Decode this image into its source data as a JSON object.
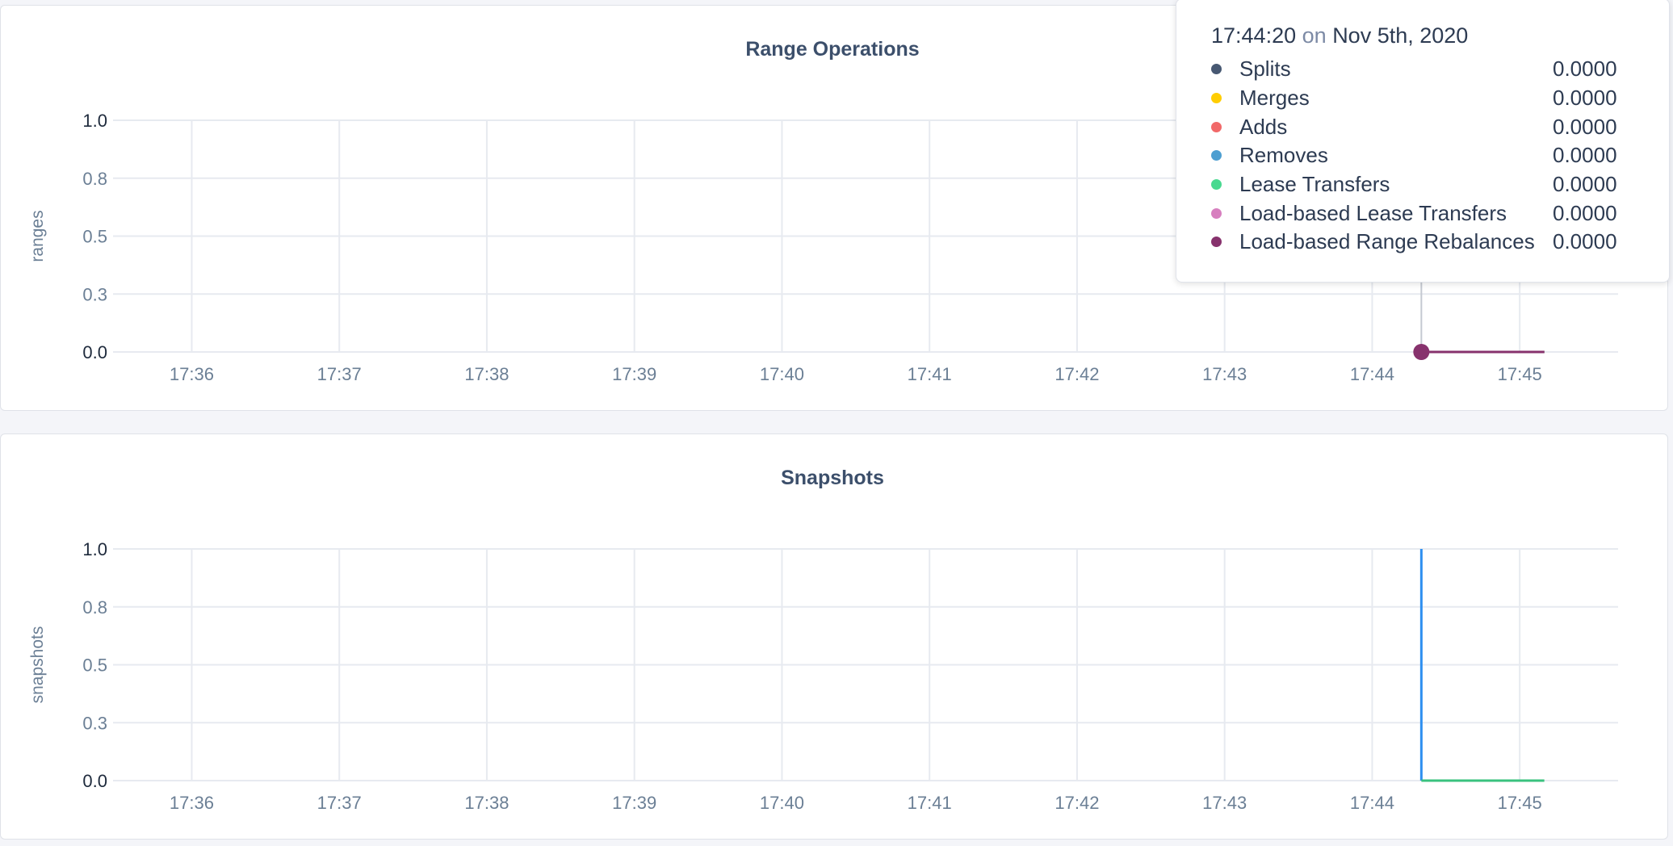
{
  "chart_data": [
    {
      "type": "line",
      "title": "Range Operations",
      "ylabel": "ranges",
      "ylim": [
        0,
        1
      ],
      "yticks": [
        "0.0",
        "0.3",
        "0.5",
        "0.8",
        "1.0"
      ],
      "ytick_values": [
        0,
        0.25,
        0.5,
        0.75,
        1
      ],
      "xticks": [
        "17:36",
        "17:37",
        "17:38",
        "17:39",
        "17:40",
        "17:41",
        "17:42",
        "17:43",
        "17:44",
        "17:45"
      ],
      "xlim": [
        "17:35:28",
        "17:45:40"
      ],
      "grid": true,
      "series": [
        {
          "name": "Splits",
          "color": "#475872",
          "x": [
            "17:44:20",
            "17:45:10"
          ],
          "y": [
            0,
            0
          ]
        },
        {
          "name": "Merges",
          "color": "#ffcd02",
          "x": [
            "17:44:20",
            "17:45:10"
          ],
          "y": [
            0,
            0
          ]
        },
        {
          "name": "Adds",
          "color": "#f16969",
          "x": [
            "17:44:20",
            "17:45:10"
          ],
          "y": [
            0,
            0
          ]
        },
        {
          "name": "Removes",
          "color": "#4e9fd1",
          "x": [
            "17:44:20",
            "17:45:10"
          ],
          "y": [
            0,
            0
          ]
        },
        {
          "name": "Lease Transfers",
          "color": "#49d990",
          "x": [
            "17:44:20",
            "17:45:10"
          ],
          "y": [
            0,
            0
          ]
        },
        {
          "name": "Load-based Lease Transfers",
          "color": "#d77fbf",
          "x": [
            "17:44:20",
            "17:45:10"
          ],
          "y": [
            0,
            0
          ]
        },
        {
          "name": "Load-based Range Rebalances",
          "color": "#87326d",
          "x": [
            "17:44:20",
            "17:45:10"
          ],
          "y": [
            0,
            0
          ]
        }
      ],
      "hover_x": "17:44:20",
      "tooltip": {
        "time": "17:44:20",
        "on": "on",
        "date": "Nov 5th, 2020",
        "values": [
          "0.0000",
          "0.0000",
          "0.0000",
          "0.0000",
          "0.0000",
          "0.0000",
          "0.0000"
        ]
      }
    },
    {
      "type": "line",
      "title": "Snapshots",
      "ylabel": "snapshots",
      "ylim": [
        0,
        1
      ],
      "yticks": [
        "0.0",
        "0.3",
        "0.5",
        "0.8",
        "1.0"
      ],
      "ytick_values": [
        0,
        0.25,
        0.5,
        0.75,
        1
      ],
      "xticks": [
        "17:36",
        "17:37",
        "17:38",
        "17:39",
        "17:40",
        "17:41",
        "17:42",
        "17:43",
        "17:44",
        "17:45"
      ],
      "xlim": [
        "17:35:28",
        "17:45:40"
      ],
      "grid": true,
      "series": [
        {
          "color": "#2e8ff0",
          "x": [
            "17:44:20",
            "17:44:20"
          ],
          "y": [
            1,
            0
          ]
        },
        {
          "color": "#3ac27e",
          "x": [
            "17:44:20",
            "17:45:10"
          ],
          "y": [
            0,
            0
          ]
        }
      ]
    }
  ]
}
